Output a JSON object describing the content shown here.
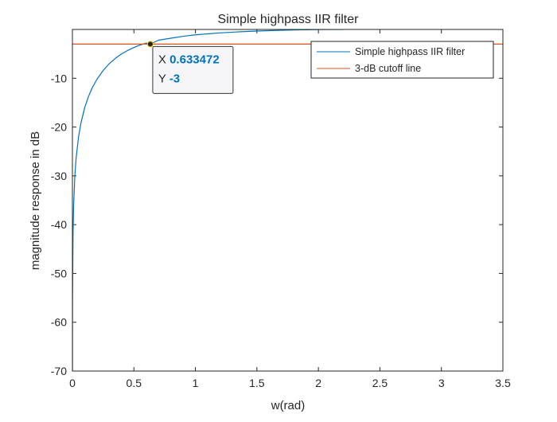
{
  "chart_data": {
    "type": "line",
    "title": "Simple highpass IIR filter",
    "xlabel": "w(rad)",
    "ylabel": "magnitude response in dB",
    "xlim": [
      0,
      3.5
    ],
    "ylim": [
      -70,
      0
    ],
    "x_ticks": [
      0,
      0.5,
      1,
      1.5,
      2,
      2.5,
      3,
      3.5
    ],
    "x_tick_labels": [
      "0",
      "0.5",
      "1",
      "1.5",
      "2",
      "2.5",
      "3",
      "3.5"
    ],
    "y_ticks": [
      -70,
      -60,
      -50,
      -40,
      -30,
      -20,
      -10
    ],
    "y_tick_labels": [
      "-70",
      "-60",
      "-50",
      "-40",
      "-30",
      "-20",
      "-10"
    ],
    "grid": false,
    "legend_position": "top-right",
    "series": [
      {
        "name": "Simple highpass IIR filter",
        "color": "#0072bd",
        "x": [
          0.0001,
          0.001,
          0.005,
          0.01,
          0.02,
          0.03,
          0.05,
          0.07,
          0.1,
          0.13,
          0.16,
          0.2,
          0.25,
          0.3,
          0.35,
          0.4,
          0.45,
          0.5,
          0.55,
          0.6,
          0.633472,
          0.7,
          0.8,
          0.9,
          1.0,
          1.1,
          1.2,
          1.3,
          1.4,
          1.5,
          1.6,
          1.7,
          1.8,
          1.9,
          2.0,
          2.1,
          2.2
        ],
        "y": [
          -75.9,
          -55.9,
          -41.9,
          -35.9,
          -29.9,
          -26.4,
          -22.0,
          -19.1,
          -16.0,
          -13.8,
          -12.0,
          -10.2,
          -8.4,
          -7.0,
          -5.9,
          -5.0,
          -4.3,
          -3.7,
          -3.2,
          -2.8,
          -3.0,
          -2.2,
          -1.8,
          -1.4,
          -1.1,
          -0.9,
          -0.7,
          -0.56,
          -0.43,
          -0.33,
          -0.24,
          -0.17,
          -0.11,
          -0.06,
          -0.03,
          -0.01,
          0
        ]
      },
      {
        "name": "3-dB cutoff line",
        "color": "#d95319",
        "x": [
          0,
          3.5
        ],
        "y": [
          -3,
          -3
        ]
      }
    ],
    "datatip": {
      "x": 0.633472,
      "y": -3,
      "x_label": "X",
      "y_label": "Y",
      "x_text": "0.633472",
      "y_text": "-3"
    }
  }
}
